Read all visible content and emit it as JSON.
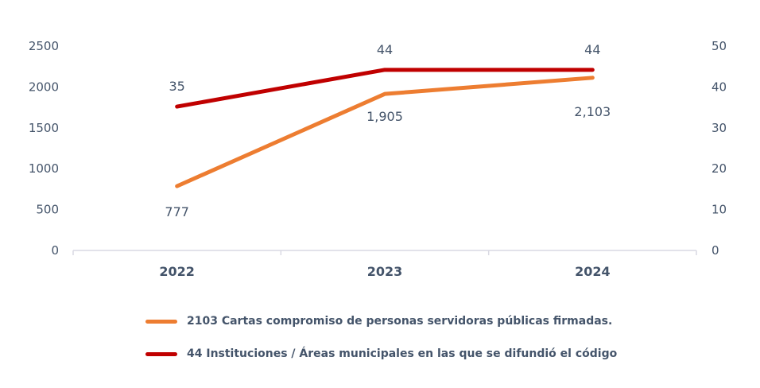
{
  "chart_data": {
    "type": "line",
    "title": "",
    "categories": [
      "2022",
      "2023",
      "2024"
    ],
    "xlabel": "",
    "ylabel": "",
    "y_left": {
      "ylim": [
        0,
        2500
      ],
      "ticks": [
        0,
        500,
        1000,
        1500,
        2000,
        2500
      ],
      "tick_labels": [
        "0",
        "500",
        "1000",
        "1500",
        "2000",
        "2500"
      ]
    },
    "y_right": {
      "ylim": [
        0,
        50
      ],
      "ticks": [
        0,
        10,
        20,
        30,
        40,
        50
      ],
      "tick_labels": [
        "0",
        "10",
        "20",
        "30",
        "40",
        "50"
      ]
    },
    "grid": false,
    "legend_position": "bottom",
    "series": [
      {
        "name": "2103 Cartas compromiso de personas servidoras públicas firmadas.",
        "axis": "left",
        "color": "#ed7d31",
        "values": [
          777,
          1905,
          2103
        ],
        "data_labels": [
          "777",
          "1,905",
          "2,103"
        ],
        "label_position": "below"
      },
      {
        "name": "44 Instituciones / Áreas municipales en las que se difundió el código",
        "axis": "right",
        "color": "#c00000",
        "values": [
          35,
          44,
          44
        ],
        "data_labels": [
          "35",
          "44",
          "44"
        ],
        "label_position": "above"
      }
    ]
  }
}
